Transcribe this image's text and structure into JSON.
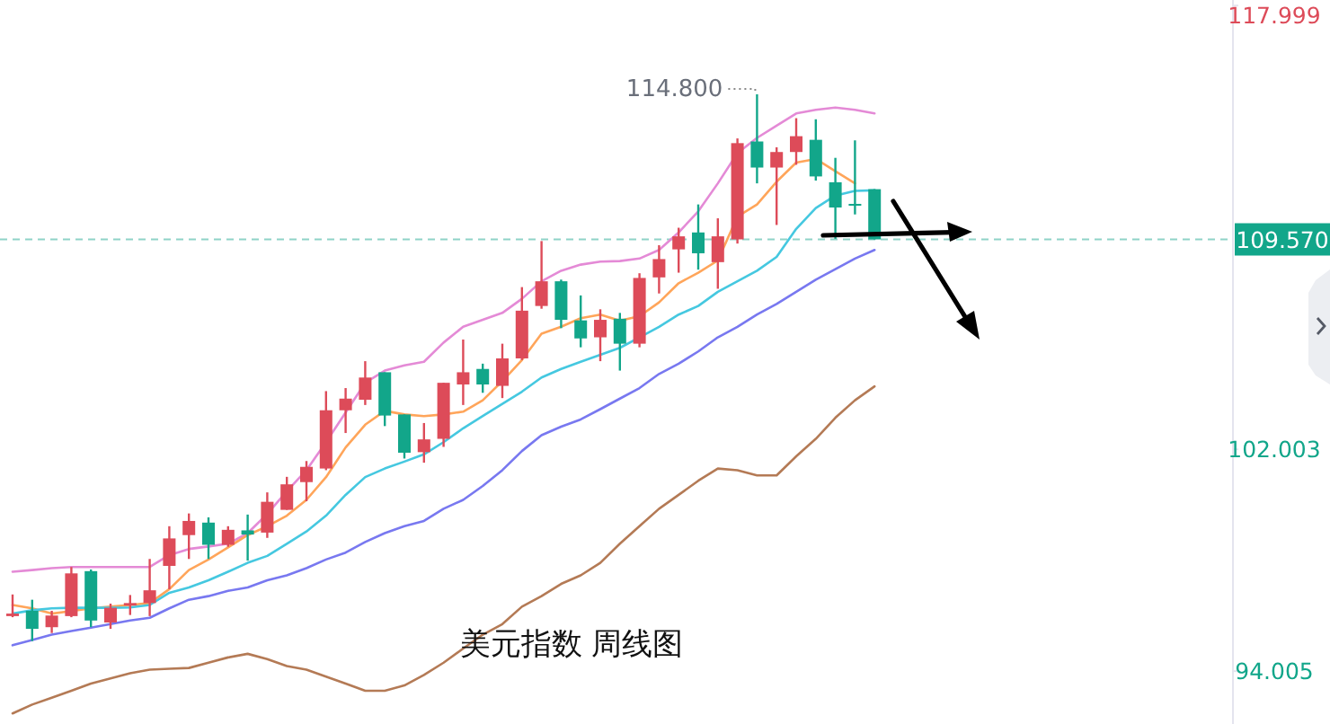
{
  "chart_data": {
    "type": "candlestick",
    "title": "美元指数 周线图",
    "categories": [
      null,
      null,
      null,
      null,
      null,
      null,
      null,
      null,
      null,
      null,
      null,
      null,
      null,
      null,
      null,
      null,
      null,
      null,
      null,
      null,
      null,
      null,
      null,
      null,
      null,
      null,
      null,
      null,
      null,
      null,
      null,
      null,
      null,
      null,
      null,
      null,
      null,
      null,
      null,
      null,
      null,
      null,
      null,
      null,
      null
    ],
    "ohlc": [
      [
        95.99,
        96.77,
        95.95,
        96.08
      ],
      [
        96.18,
        96.58,
        95.09,
        95.53
      ],
      [
        95.59,
        96.18,
        95.38,
        96.01
      ],
      [
        95.99,
        97.76,
        95.95,
        97.53
      ],
      [
        97.61,
        97.67,
        95.59,
        95.83
      ],
      [
        95.76,
        96.44,
        95.53,
        96.29
      ],
      [
        96.37,
        96.75,
        96.03,
        96.46
      ],
      [
        96.46,
        98.05,
        95.99,
        96.92
      ],
      [
        97.8,
        99.23,
        96.96,
        98.79
      ],
      [
        98.91,
        99.69,
        98.05,
        99.42
      ],
      [
        99.36,
        99.55,
        98.05,
        98.56
      ],
      [
        98.56,
        99.23,
        98.49,
        99.1
      ],
      [
        99.08,
        99.65,
        97.99,
        98.93
      ],
      [
        99.0,
        100.45,
        98.81,
        100.11
      ],
      [
        99.82,
        101.01,
        99.82,
        100.74
      ],
      [
        100.82,
        101.58,
        100.13,
        101.37
      ],
      [
        101.31,
        104.1,
        101.25,
        103.41
      ],
      [
        103.41,
        104.21,
        102.59,
        103.83
      ],
      [
        103.79,
        105.18,
        103.6,
        104.59
      ],
      [
        104.78,
        104.78,
        102.84,
        103.22
      ],
      [
        103.26,
        103.26,
        101.67,
        101.88
      ],
      [
        101.9,
        102.95,
        101.52,
        102.36
      ],
      [
        102.38,
        104.4,
        102.09,
        104.4
      ],
      [
        104.34,
        105.96,
        103.6,
        104.78
      ],
      [
        104.9,
        105.09,
        104.04,
        104.34
      ],
      [
        104.29,
        105.81,
        103.85,
        105.28
      ],
      [
        105.28,
        107.85,
        105.22,
        107.0
      ],
      [
        107.17,
        109.51,
        107.07,
        108.06
      ],
      [
        108.06,
        108.12,
        106.37,
        106.67
      ],
      [
        106.65,
        107.55,
        105.68,
        106.0
      ],
      [
        106.04,
        107.05,
        105.18,
        106.67
      ],
      [
        106.71,
        106.92,
        104.84,
        105.81
      ],
      [
        105.81,
        108.35,
        105.68,
        108.18
      ],
      [
        108.2,
        109.36,
        107.62,
        108.86
      ],
      [
        109.21,
        109.99,
        108.37,
        109.68
      ],
      [
        109.82,
        110.83,
        108.48,
        109.07
      ],
      [
        108.75,
        110.33,
        107.79,
        109.68
      ],
      [
        109.57,
        113.21,
        109.42,
        113.04
      ],
      [
        113.1,
        114.8,
        111.59,
        112.16
      ],
      [
        112.16,
        112.89,
        110.09,
        112.72
      ],
      [
        112.72,
        113.94,
        112.26,
        113.29
      ],
      [
        113.16,
        113.9,
        111.69,
        111.84
      ],
      [
        111.63,
        112.51,
        109.59,
        110.72
      ],
      [
        110.85,
        113.14,
        110.47,
        110.81
      ],
      [
        111.38,
        111.38,
        109.57,
        109.57
      ]
    ],
    "series": [
      {
        "type": "line",
        "color": "#e48ad6",
        "values": [
          97.59,
          97.65,
          97.72,
          97.76,
          97.76,
          97.76,
          97.76,
          97.76,
          98.19,
          98.41,
          98.5,
          98.6,
          98.98,
          99.67,
          100.49,
          101.25,
          102.26,
          103.33,
          104.4,
          104.84,
          105.03,
          105.16,
          105.85,
          106.42,
          106.67,
          106.92,
          107.43,
          108.06,
          108.44,
          108.66,
          108.77,
          108.79,
          108.88,
          109.19,
          109.82,
          110.58,
          111.59,
          112.68,
          113.23,
          113.67,
          114.11,
          114.24,
          114.32,
          114.24,
          114.11
        ]
      },
      {
        "type": "line",
        "color": "#ffa55a",
        "values": [
          96.39,
          96.27,
          96.08,
          96.17,
          96.27,
          96.33,
          96.39,
          96.46,
          96.96,
          97.65,
          98.03,
          98.47,
          98.91,
          99.23,
          99.61,
          100.18,
          101.0,
          102.07,
          102.89,
          103.39,
          103.26,
          103.2,
          103.26,
          103.36,
          103.77,
          104.46,
          105.22,
          106.17,
          106.42,
          106.73,
          106.86,
          106.64,
          106.8,
          107.3,
          107.99,
          108.37,
          108.81,
          110.39,
          110.83,
          111.65,
          112.34,
          112.47,
          112.03,
          111.59,
          null
        ]
      },
      {
        "type": "line",
        "color": "#45c8e0",
        "values": [
          96.08,
          96.2,
          96.27,
          96.29,
          96.29,
          96.29,
          96.3,
          96.39,
          96.83,
          97.02,
          97.28,
          97.59,
          97.91,
          98.16,
          98.6,
          99.04,
          99.61,
          100.36,
          101.0,
          101.31,
          101.56,
          101.82,
          102.26,
          102.76,
          103.2,
          103.64,
          104.08,
          104.59,
          104.9,
          105.16,
          105.41,
          105.66,
          106.04,
          106.42,
          106.86,
          107.17,
          107.68,
          108.06,
          108.44,
          108.94,
          109.95,
          110.7,
          111.15,
          111.32,
          111.34
        ]
      },
      {
        "type": "line",
        "color": "#7878f0",
        "values": [
          94.94,
          95.13,
          95.32,
          95.45,
          95.57,
          95.7,
          95.83,
          95.93,
          96.27,
          96.58,
          96.71,
          96.9,
          97.02,
          97.28,
          97.46,
          97.72,
          98.03,
          98.28,
          98.66,
          98.98,
          99.23,
          99.42,
          99.86,
          100.18,
          100.68,
          101.25,
          101.94,
          102.51,
          102.82,
          103.08,
          103.45,
          103.83,
          104.21,
          104.72,
          105.09,
          105.53,
          106.04,
          106.42,
          106.86,
          107.24,
          107.68,
          108.12,
          108.5,
          108.88,
          109.19
        ]
      },
      {
        "type": "line",
        "color": "#b47a55",
        "values": [
          92.48,
          92.8,
          93.05,
          93.3,
          93.56,
          93.74,
          93.93,
          94.06,
          94.09,
          94.12,
          94.31,
          94.5,
          94.63,
          94.44,
          94.19,
          94.06,
          93.81,
          93.56,
          93.3,
          93.3,
          93.49,
          93.87,
          94.31,
          94.82,
          95.32,
          95.7,
          96.33,
          96.71,
          97.15,
          97.46,
          97.91,
          98.6,
          99.23,
          99.86,
          100.36,
          100.87,
          101.31,
          101.25,
          101.06,
          101.06,
          101.75,
          102.38,
          103.14,
          103.77,
          104.27
        ]
      }
    ],
    "ylim": [
      92.1,
      118.2
    ],
    "yticks": [
      117.999,
      102.003,
      94.005
    ],
    "tick_labels": "y",
    "ref_lines": [
      {
        "axis": "y",
        "value": 109.57,
        "label": "109.570",
        "color": "#8fd3c8",
        "line_style": "dashed"
      }
    ],
    "annotations": [
      "114.800"
    ]
  }
}
